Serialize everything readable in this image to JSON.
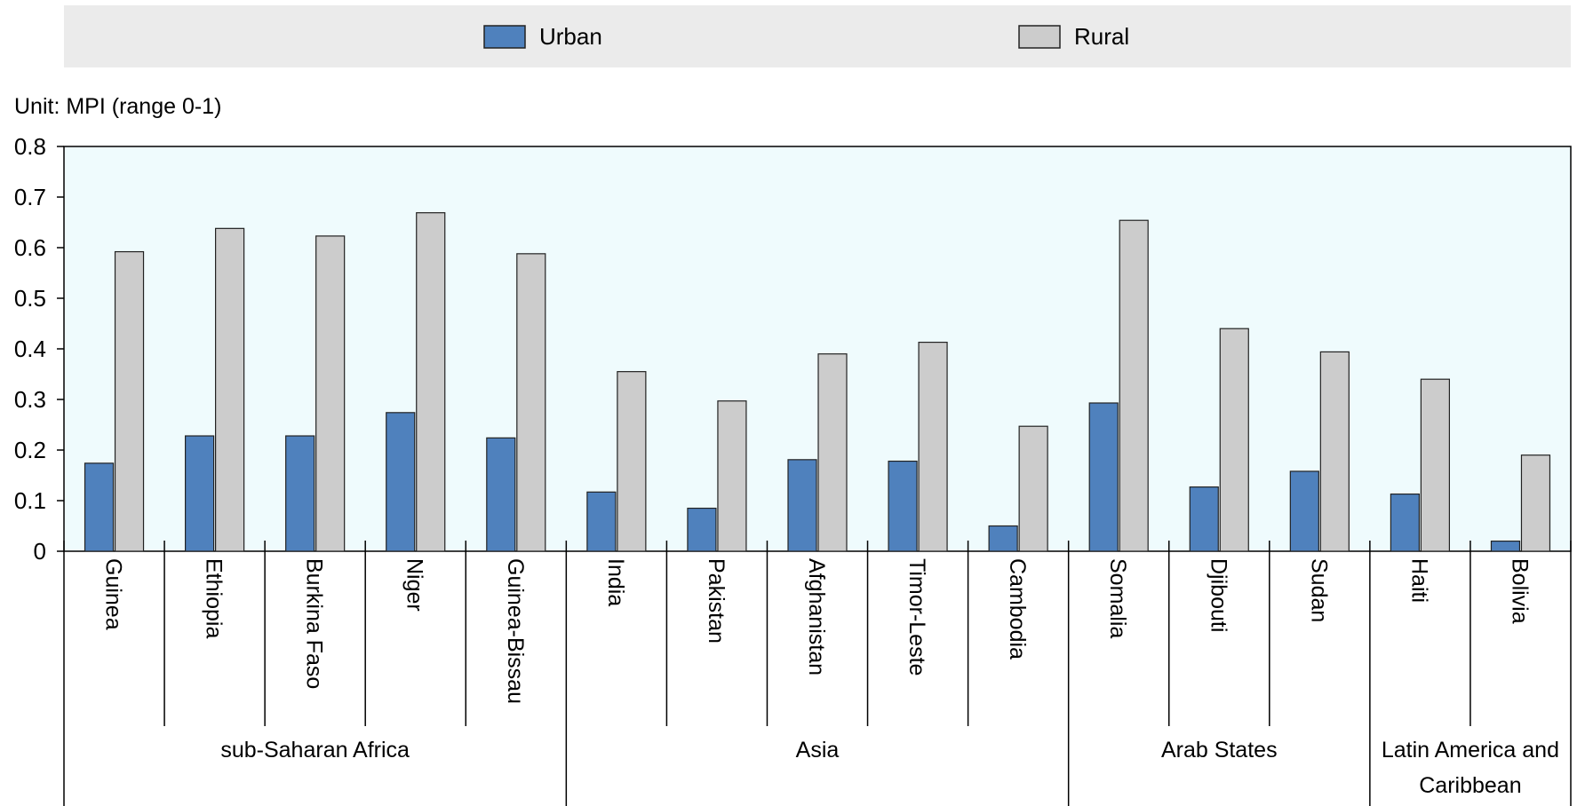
{
  "chart_data": {
    "type": "bar",
    "unit_label": "Unit: MPI (range 0-1)",
    "ylim": [
      0,
      0.8
    ],
    "yticks": [
      "0",
      "0.1",
      "0.2",
      "0.3",
      "0.4",
      "0.5",
      "0.6",
      "0.7",
      "0.8"
    ],
    "legend_position": "top",
    "grid": false,
    "categories": [
      "Guinea",
      "Ethiopia",
      "Burkina Faso",
      "Niger",
      "Guinea-Bissau",
      "India",
      "Pakistan",
      "Afghanistan",
      "Timor-Leste",
      "Cambodia",
      "Somalia",
      "Djibouti",
      "Sudan",
      "Haiti",
      "Bolivia"
    ],
    "groups": [
      {
        "name": "sub-Saharan Africa",
        "lines": [
          "sub-Saharan Africa"
        ],
        "start": 0,
        "count": 5
      },
      {
        "name": "Asia",
        "lines": [
          "Asia"
        ],
        "start": 5,
        "count": 5
      },
      {
        "name": "Arab States",
        "lines": [
          "Arab States"
        ],
        "start": 10,
        "count": 3
      },
      {
        "name": "Latin America and Caribbean",
        "lines": [
          "Latin America and",
          "Caribbean"
        ],
        "start": 13,
        "count": 2
      }
    ],
    "series": [
      {
        "name": "Urban",
        "color": "#4f81bd",
        "values": [
          0.174,
          0.228,
          0.228,
          0.274,
          0.224,
          0.117,
          0.085,
          0.181,
          0.178,
          0.05,
          0.293,
          0.127,
          0.158,
          0.113,
          0.02
        ]
      },
      {
        "name": "Rural",
        "color": "#cccccc",
        "values": [
          0.592,
          0.638,
          0.623,
          0.669,
          0.588,
          0.355,
          0.297,
          0.39,
          0.413,
          0.247,
          0.654,
          0.44,
          0.394,
          0.34,
          0.19
        ]
      }
    ],
    "plot_background": "#effbfd",
    "legend_background": "#ebebeb"
  }
}
